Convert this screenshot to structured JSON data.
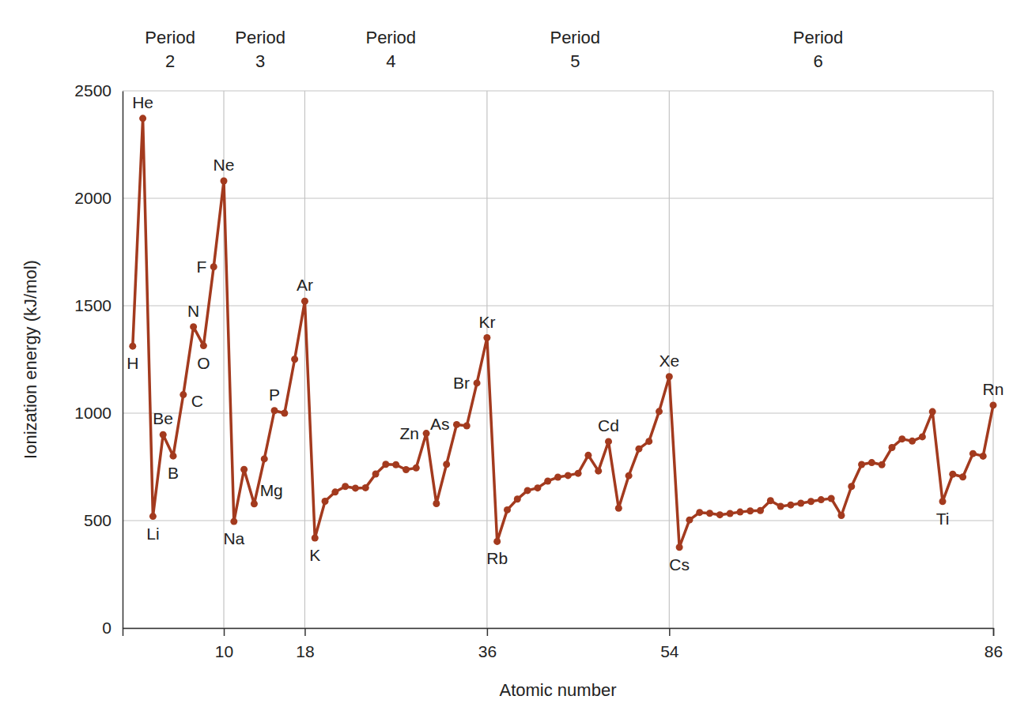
{
  "chart_data": {
    "type": "line",
    "x_label": "Atomic number",
    "y_label": "Ionization energy (kJ/mol)",
    "x": [
      1,
      2,
      3,
      4,
      5,
      6,
      7,
      8,
      9,
      10,
      11,
      12,
      13,
      14,
      15,
      16,
      17,
      18,
      19,
      20,
      21,
      22,
      23,
      24,
      25,
      26,
      27,
      28,
      29,
      30,
      31,
      32,
      33,
      34,
      35,
      36,
      37,
      38,
      39,
      40,
      41,
      42,
      43,
      44,
      45,
      46,
      47,
      48,
      49,
      50,
      51,
      52,
      53,
      54,
      55,
      56,
      57,
      58,
      59,
      60,
      61,
      62,
      63,
      64,
      65,
      66,
      67,
      68,
      69,
      70,
      71,
      72,
      73,
      74,
      75,
      76,
      77,
      78,
      79,
      80,
      81,
      82,
      83,
      84,
      85,
      86
    ],
    "values": [
      1312,
      2372,
      520,
      900,
      801,
      1086,
      1402,
      1314,
      1681,
      2081,
      496,
      738,
      578,
      787,
      1012,
      1000,
      1251,
      1521,
      419,
      590,
      633,
      659,
      651,
      653,
      717,
      762,
      760,
      737,
      745,
      906,
      579,
      762,
      947,
      941,
      1140,
      1351,
      403,
      550,
      600,
      640,
      652,
      684,
      702,
      710,
      720,
      804,
      731,
      868,
      558,
      709,
      834,
      869,
      1008,
      1170,
      376,
      503,
      538,
      534,
      527,
      533,
      540,
      545,
      547,
      593,
      566,
      573,
      581,
      589,
      597,
      603,
      524,
      659,
      761,
      770,
      760,
      840,
      880,
      870,
      890,
      1007,
      589,
      716,
      703,
      812,
      800,
      1037
    ],
    "color": "#a33a1e",
    "marker": "circle",
    "xlim": [
      0,
      86
    ],
    "xticks": [
      10,
      18,
      36,
      54,
      86
    ],
    "ylim": [
      0,
      2500
    ],
    "yticks": [
      0,
      500,
      1000,
      1500,
      2000,
      2500
    ],
    "grid": true,
    "annotations": [
      {
        "text": "H",
        "x": 1,
        "position": "below"
      },
      {
        "text": "He",
        "x": 2,
        "position": "above"
      },
      {
        "text": "Li",
        "x": 3,
        "position": "below"
      },
      {
        "text": "Be",
        "x": 4,
        "position": "above"
      },
      {
        "text": "B",
        "x": 5,
        "position": "below"
      },
      {
        "text": "C",
        "x": 6,
        "position": "right"
      },
      {
        "text": "N",
        "x": 7,
        "position": "above"
      },
      {
        "text": "O",
        "x": 8,
        "position": "below"
      },
      {
        "text": "F",
        "x": 9,
        "position": "left"
      },
      {
        "text": "Ne",
        "x": 10,
        "position": "above"
      },
      {
        "text": "Na",
        "x": 11,
        "position": "below"
      },
      {
        "text": "Mg",
        "x": 12,
        "position": "below-right"
      },
      {
        "text": "P",
        "x": 15,
        "position": "above"
      },
      {
        "text": "Ar",
        "x": 18,
        "position": "above"
      },
      {
        "text": "K",
        "x": 19,
        "position": "below"
      },
      {
        "text": "Zn",
        "x": 30,
        "position": "left"
      },
      {
        "text": "As",
        "x": 33,
        "position": "left"
      },
      {
        "text": "Br",
        "x": 35,
        "position": "left"
      },
      {
        "text": "Kr",
        "x": 36,
        "position": "above"
      },
      {
        "text": "Rb",
        "x": 37,
        "position": "below"
      },
      {
        "text": "Cd",
        "x": 48,
        "position": "above"
      },
      {
        "text": "Xe",
        "x": 54,
        "position": "above"
      },
      {
        "text": "Cs",
        "x": 55,
        "position": "below"
      },
      {
        "text": "Ti",
        "x": 81,
        "position": "below"
      },
      {
        "text": "Rn",
        "x": 86,
        "position": "above"
      }
    ],
    "period_labels": [
      {
        "text": "Period",
        "number": 2,
        "x": 4.7
      },
      {
        "text": "Period",
        "number": 3,
        "x": 13.6
      },
      {
        "text": "Period",
        "number": 4,
        "x": 26.5
      },
      {
        "text": "Period",
        "number": 5,
        "x": 44.7
      },
      {
        "text": "Period",
        "number": 6,
        "x": 68.7
      }
    ]
  }
}
